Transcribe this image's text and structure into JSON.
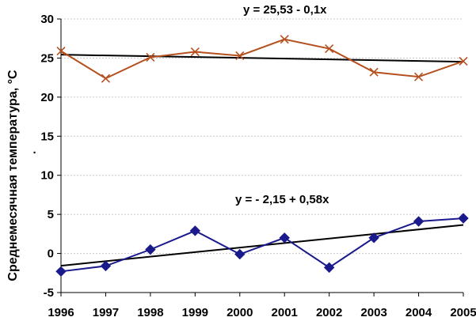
{
  "chart_data": {
    "type": "line",
    "title": "",
    "xlabel": "",
    "ylabel": "Среднемесячная температура, °С",
    "x": [
      1996,
      1997,
      1998,
      1999,
      2000,
      2001,
      2002,
      2003,
      2004,
      2005
    ],
    "xticks": [
      "1996",
      "1997",
      "1998",
      "1999",
      "2000",
      "2001",
      "2002",
      "2003",
      "2004",
      "2005"
    ],
    "ylim": [
      -5,
      30
    ],
    "yticks": [
      "-5",
      "0",
      "5",
      "10",
      "15",
      "20",
      "25",
      "30"
    ],
    "grid": "horizontal, dotted",
    "legend": "none",
    "series": [
      {
        "color": "#b5501e",
        "marker": "x",
        "values": [
          25.9,
          22.4,
          25.1,
          25.8,
          25.3,
          27.4,
          26.2,
          23.2,
          22.6,
          24.6
        ]
      },
      {
        "color": "#1a1a8c",
        "marker": "diamond",
        "values": [
          -2.3,
          -1.6,
          0.5,
          2.9,
          -0.1,
          2.0,
          -1.8,
          2.0,
          4.1,
          4.5
        ]
      }
    ],
    "trendlines": [
      {
        "color": "#000000",
        "intercept": 25.53,
        "slope": -0.1,
        "label": "y = 25,53 - 0,1x"
      },
      {
        "color": "#000000",
        "intercept": -2.15,
        "slope": 0.58,
        "label": "y = - 2,15 + 0,58x"
      }
    ],
    "annotations": [
      "·"
    ]
  }
}
